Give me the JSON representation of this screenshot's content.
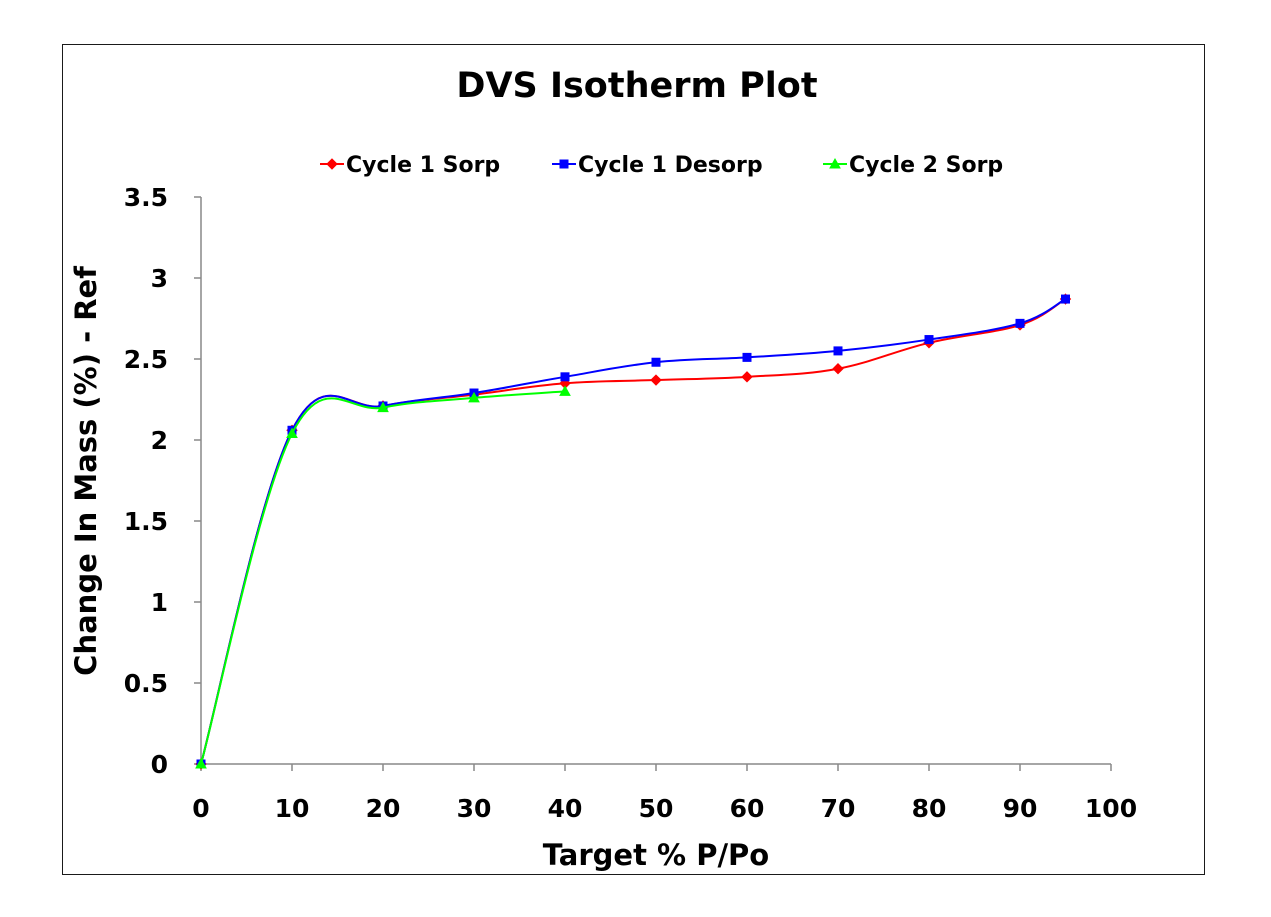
{
  "chart_data": {
    "type": "line",
    "title": "DVS Isotherm Plot",
    "xlabel": "Target % P/Po",
    "ylabel": "Change In Mass (%) - Ref",
    "xlim": [
      0,
      100
    ],
    "ylim": [
      0,
      3.5
    ],
    "x_ticks": [
      "0",
      "10",
      "20",
      "30",
      "40",
      "50",
      "60",
      "70",
      "80",
      "90",
      "100"
    ],
    "y_ticks": [
      "0",
      "0.5",
      "1",
      "1.5",
      "2",
      "2.5",
      "3",
      "3.5"
    ],
    "grid": false,
    "legend_position": "top",
    "series": [
      {
        "name": "Cycle 1 Sorp",
        "color": "#ff0000",
        "marker": "diamond",
        "x": [
          0,
          10,
          20,
          30,
          40,
          50,
          60,
          70,
          80,
          90,
          95
        ],
        "y": [
          0,
          2.06,
          2.21,
          2.28,
          2.35,
          2.37,
          2.39,
          2.44,
          2.6,
          2.71,
          2.87
        ]
      },
      {
        "name": "Cycle 1 Desorp",
        "color": "#0000ff",
        "marker": "square",
        "x": [
          95,
          90,
          80,
          70,
          60,
          50,
          40,
          30,
          20,
          10,
          0
        ],
        "y": [
          2.87,
          2.72,
          2.62,
          2.55,
          2.51,
          2.48,
          2.39,
          2.29,
          2.21,
          2.06,
          0
        ]
      },
      {
        "name": "Cycle 2 Sorp",
        "color": "#00ff00",
        "marker": "triangle",
        "x": [
          0,
          10,
          20,
          30,
          40
        ],
        "y": [
          0,
          2.04,
          2.2,
          2.26,
          2.3
        ]
      }
    ]
  }
}
